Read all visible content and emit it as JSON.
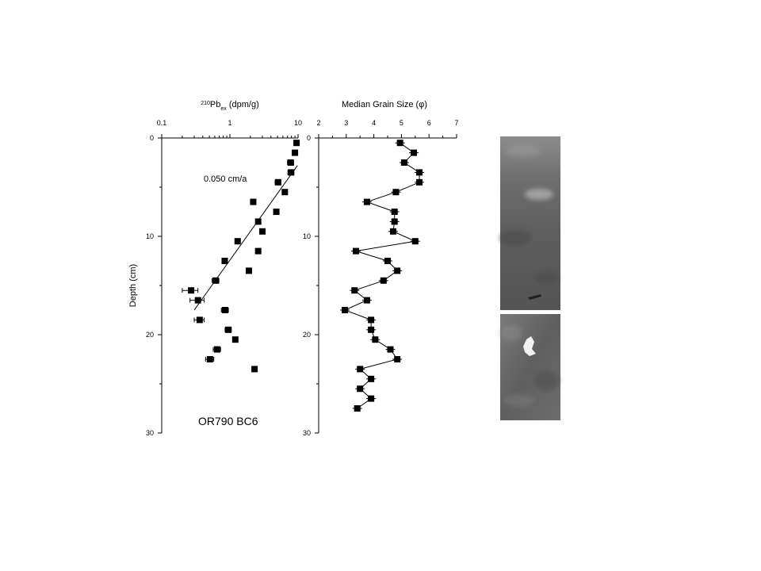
{
  "chart_data": [
    {
      "type": "scatter",
      "title": "",
      "xlabel": {
        "prefix": "210",
        "base": "Pb",
        "sub": "ex",
        "rest": " (dpm/g)"
      },
      "ylabel": "Depth (cm)",
      "xscale": "log",
      "xlim": [
        0.1,
        10
      ],
      "ylim": [
        0,
        30
      ],
      "y_inverted": true,
      "x_axis_position": "top",
      "xticks": [
        {
          "value": 0.1,
          "label": "0.1"
        },
        {
          "value": 1,
          "label": "1"
        },
        {
          "value": 10,
          "label": "10"
        }
      ],
      "yticks": [
        {
          "value": 0,
          "label": "0"
        },
        {
          "value": 10,
          "label": "10"
        },
        {
          "value": 20,
          "label": "20"
        },
        {
          "value": 30,
          "label": "30"
        }
      ],
      "points": [
        {
          "x": 9.5,
          "y": 0.5,
          "err": 0.8
        },
        {
          "x": 9.0,
          "y": 1.5,
          "err": 0.8
        },
        {
          "x": 7.8,
          "y": 2.5,
          "err": 0.8
        },
        {
          "x": 7.9,
          "y": 3.5,
          "err": 0.8
        },
        {
          "x": 5.1,
          "y": 4.5,
          "err": 0.5
        },
        {
          "x": 6.4,
          "y": 5.5,
          "err": 0.5
        },
        {
          "x": 2.2,
          "y": 6.5,
          "err": 0.15
        },
        {
          "x": 4.8,
          "y": 7.5,
          "err": 0.35
        },
        {
          "x": 2.6,
          "y": 8.5,
          "err": 0.2
        },
        {
          "x": 3.0,
          "y": 9.5,
          "err": 0.2
        },
        {
          "x": 1.3,
          "y": 10.5,
          "err": 0.1
        },
        {
          "x": 2.6,
          "y": 11.5,
          "err": 0.15
        },
        {
          "x": 0.84,
          "y": 12.5,
          "err": 0.07
        },
        {
          "x": 1.9,
          "y": 13.5,
          "err": 0.15
        },
        {
          "x": 0.62,
          "y": 14.5,
          "err": 0.07
        },
        {
          "x": 0.27,
          "y": 15.5,
          "err": 0.07
        },
        {
          "x": 0.34,
          "y": 16.5,
          "err": 0.08
        },
        {
          "x": 0.85,
          "y": 17.5,
          "err": 0.1
        },
        {
          "x": 0.36,
          "y": 18.5,
          "err": 0.06
        },
        {
          "x": 0.95,
          "y": 19.5,
          "err": 0.1
        },
        {
          "x": 0.65,
          "y": 21.5,
          "err": 0.08
        },
        {
          "x": 1.2,
          "y": 20.5,
          "err": 0.1
        },
        {
          "x": 0.51,
          "y": 22.5,
          "err": 0.07
        },
        {
          "x": 2.3,
          "y": 23.5,
          "err": 0.0
        }
      ],
      "fit_line": {
        "x": [
          9.8,
          0.3
        ],
        "y": [
          2.8,
          17.5
        ]
      },
      "annotation": "0.050 cm/a",
      "core_label": "OR790 BC6"
    },
    {
      "type": "line",
      "title": "",
      "xlabel": {
        "text": "Median Grain Size (",
        "symbol": "φ",
        "close": ")"
      },
      "ylabel": "",
      "xlim": [
        2,
        7
      ],
      "ylim": [
        0,
        30
      ],
      "y_inverted": true,
      "x_axis_position": "top",
      "xticks": [
        {
          "value": 2,
          "label": "2"
        },
        {
          "value": 3,
          "label": "3"
        },
        {
          "value": 4,
          "label": "4"
        },
        {
          "value": 5,
          "label": "5"
        },
        {
          "value": 6,
          "label": "6"
        },
        {
          "value": 7,
          "label": "7"
        }
      ],
      "yticks": [
        {
          "value": 0,
          "label": "0"
        },
        {
          "value": 10,
          "label": "10"
        },
        {
          "value": 20,
          "label": "20"
        },
        {
          "value": 30,
          "label": "30"
        }
      ],
      "points": [
        {
          "x": 4.95,
          "y": 0.5
        },
        {
          "x": 5.45,
          "y": 1.5
        },
        {
          "x": 5.1,
          "y": 2.5
        },
        {
          "x": 5.65,
          "y": 3.5
        },
        {
          "x": 5.65,
          "y": 4.5
        },
        {
          "x": 4.8,
          "y": 5.5
        },
        {
          "x": 3.75,
          "y": 6.5
        },
        {
          "x": 4.75,
          "y": 7.5
        },
        {
          "x": 4.75,
          "y": 8.5
        },
        {
          "x": 4.7,
          "y": 9.5
        },
        {
          "x": 5.5,
          "y": 10.5
        },
        {
          "x": 3.35,
          "y": 11.5
        },
        {
          "x": 4.5,
          "y": 12.5
        },
        {
          "x": 4.85,
          "y": 13.5
        },
        {
          "x": 4.35,
          "y": 14.5
        },
        {
          "x": 3.3,
          "y": 15.5
        },
        {
          "x": 3.75,
          "y": 16.5
        },
        {
          "x": 2.95,
          "y": 17.5
        },
        {
          "x": 3.9,
          "y": 18.5
        },
        {
          "x": 3.9,
          "y": 19.5
        },
        {
          "x": 4.05,
          "y": 20.5
        },
        {
          "x": 4.6,
          "y": 21.5
        },
        {
          "x": 4.85,
          "y": 22.5
        },
        {
          "x": 3.5,
          "y": 23.5
        },
        {
          "x": 3.9,
          "y": 24.5
        },
        {
          "x": 3.5,
          "y": 25.5
        },
        {
          "x": 3.9,
          "y": 26.5
        },
        {
          "x": 3.4,
          "y": 27.5
        }
      ]
    }
  ]
}
